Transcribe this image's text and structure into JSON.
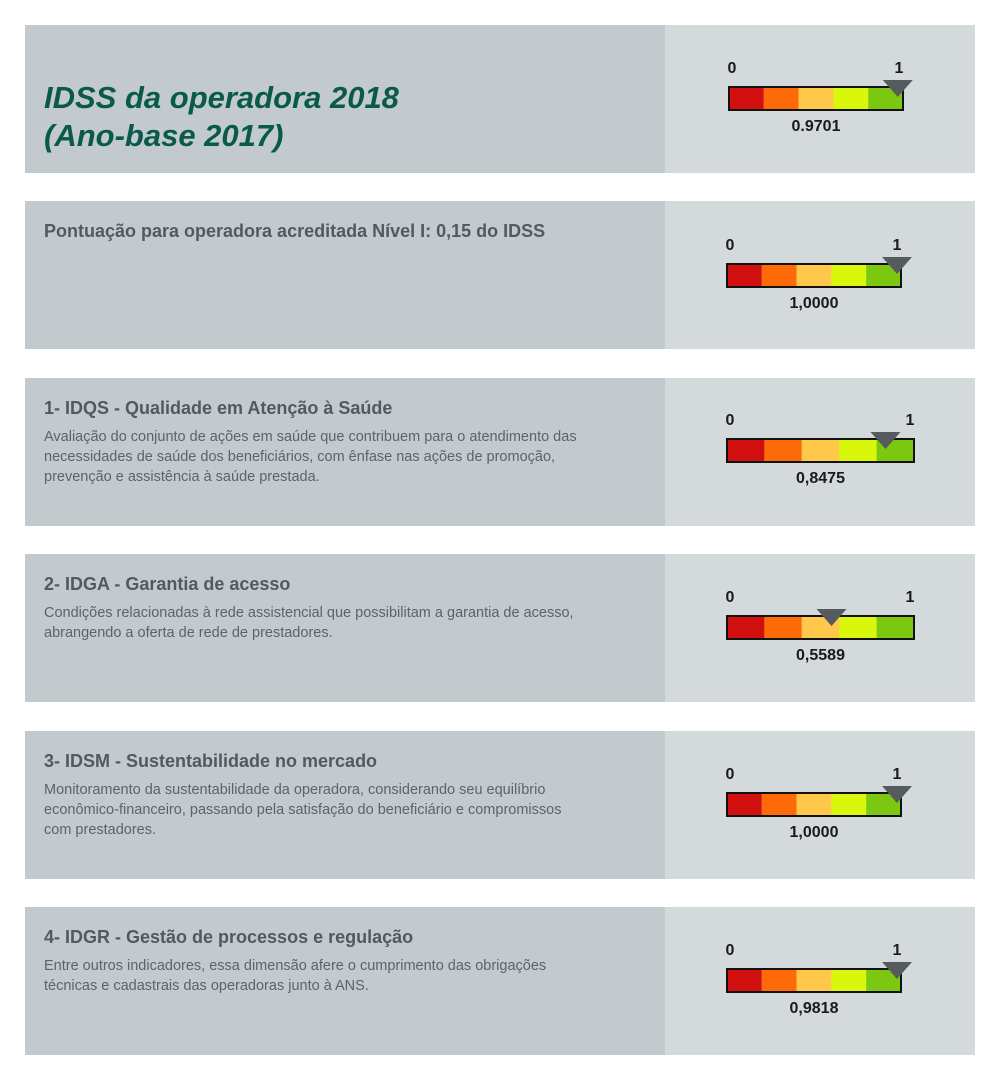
{
  "main": {
    "title_line1": "IDSS da operadora 2018",
    "title_line2": "(Ano-base 2017)"
  },
  "sections": [
    {
      "id": "idss",
      "title": "",
      "description": "",
      "scale_min": "0",
      "scale_max": "1",
      "value": 0.9701,
      "value_label": "0.9701"
    },
    {
      "id": "acreditada",
      "title": "Pontuação para operadora acreditada Nível I: 0,15 do IDSS",
      "description": "",
      "scale_min": "0",
      "scale_max": "1",
      "value": 1.0,
      "value_label": "1,0000"
    },
    {
      "id": "idqs",
      "title": "1- IDQS - Qualidade em Atenção à Saúde",
      "description": "Avaliação do conjunto de ações em saúde que contribuem para o atendimento das necessidades de saúde dos beneficiários, com ênfase nas ações de promoção, prevenção e assistência à saúde prestada.",
      "scale_min": "0",
      "scale_max": "1",
      "value": 0.8475,
      "value_label": "0,8475"
    },
    {
      "id": "idga",
      "title": "2- IDGA - Garantia de acesso",
      "description": "Condições relacionadas à rede assistencial que possibilitam a garantia de acesso, abrangendo a oferta de rede de prestadores.",
      "scale_min": "0",
      "scale_max": "1",
      "value": 0.5589,
      "value_label": "0,5589"
    },
    {
      "id": "idsm",
      "title": "3- IDSM - Sustentabilidade no mercado",
      "description": "Monitoramento da sustentabilidade da operadora, considerando seu equilíbrio econômico-financeiro, passando pela satisfação do beneficiário e compromissos com prestadores.",
      "scale_min": "0",
      "scale_max": "1",
      "value": 1.0,
      "value_label": "1,0000"
    },
    {
      "id": "idgr",
      "title": "4- IDGR - Gestão de processos e regulação",
      "description": "Entre outros indicadores, essa dimensão afere o cumprimento das obrigações técnicas e cadastrais das operadoras junto à ANS.",
      "scale_min": "0",
      "scale_max": "1",
      "value": 0.9818,
      "value_label": "0,9818"
    }
  ],
  "colors": {
    "band_1": "#d10f0f",
    "band_2": "#ff6a08",
    "band_3": "#ffc84a",
    "band_4": "#d8f70a",
    "band_5": "#7cc810",
    "pointer": "#555b5f",
    "title_green": "#0a5a4c"
  },
  "chart_data": [
    {
      "type": "gauge",
      "min": 0,
      "max": 1,
      "value": 0.9701,
      "value_label": "0.9701",
      "bands": 5
    },
    {
      "type": "gauge",
      "min": 0,
      "max": 1,
      "value": 1.0,
      "value_label": "1,0000",
      "bands": 5
    },
    {
      "type": "gauge",
      "min": 0,
      "max": 1,
      "value": 0.8475,
      "value_label": "0,8475",
      "bands": 5
    },
    {
      "type": "gauge",
      "min": 0,
      "max": 1,
      "value": 0.5589,
      "value_label": "0,5589",
      "bands": 5
    },
    {
      "type": "gauge",
      "min": 0,
      "max": 1,
      "value": 1.0,
      "value_label": "1,0000",
      "bands": 5
    },
    {
      "type": "gauge",
      "min": 0,
      "max": 1,
      "value": 0.9818,
      "value_label": "0,9818",
      "bands": 5
    }
  ]
}
